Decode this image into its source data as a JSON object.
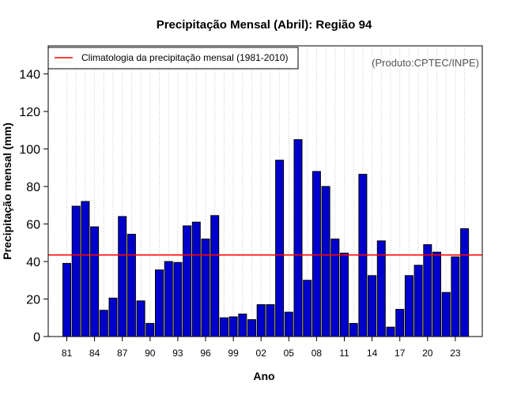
{
  "chart_data": {
    "type": "bar",
    "title": "Precipitação Mensal (Abril): Região 94",
    "xlabel": "Ano",
    "ylabel": "Precipitação mensal (mm)",
    "credit": "(Produto:CPTEC/INPE)",
    "ylim": [
      0,
      155
    ],
    "yticks": [
      0,
      20,
      40,
      60,
      80,
      100,
      120,
      140
    ],
    "years": [
      1981,
      1982,
      1983,
      1984,
      1985,
      1986,
      1987,
      1988,
      1989,
      1990,
      1991,
      1992,
      1993,
      1994,
      1995,
      1996,
      1997,
      1998,
      1999,
      2000,
      2001,
      2002,
      2003,
      2004,
      2005,
      2006,
      2007,
      2008,
      2009,
      2010,
      2011,
      2012,
      2013,
      2014,
      2015,
      2016,
      2017,
      2018,
      2019,
      2020,
      2021,
      2022,
      2023,
      2024
    ],
    "xtick_labels": [
      "81",
      "84",
      "87",
      "90",
      "93",
      "96",
      "99",
      "02",
      "05",
      "08",
      "11",
      "14",
      "17",
      "20",
      "23"
    ],
    "xtick_years": [
      1981,
      1984,
      1987,
      1990,
      1993,
      1996,
      1999,
      2002,
      2005,
      2008,
      2011,
      2014,
      2017,
      2020,
      2023
    ],
    "values": [
      39,
      69.5,
      72,
      58.5,
      14,
      20.5,
      64,
      54.5,
      19,
      7,
      35.5,
      40,
      39.5,
      59,
      61,
      52,
      64.5,
      10,
      10.5,
      12,
      9,
      17,
      17,
      94,
      13,
      105,
      30,
      88,
      80,
      52,
      44.5,
      7,
      86.5,
      32.5,
      51,
      5,
      14.5,
      32.5,
      38,
      49,
      45,
      23.5,
      42.5,
      57.5
    ],
    "reference_line": {
      "label": "Climatologia da precipitação mensal (1981-2010)",
      "value": 43.5,
      "color": "#ff0000"
    },
    "bar_color": "#0000cd",
    "legend_position": "top-left"
  }
}
